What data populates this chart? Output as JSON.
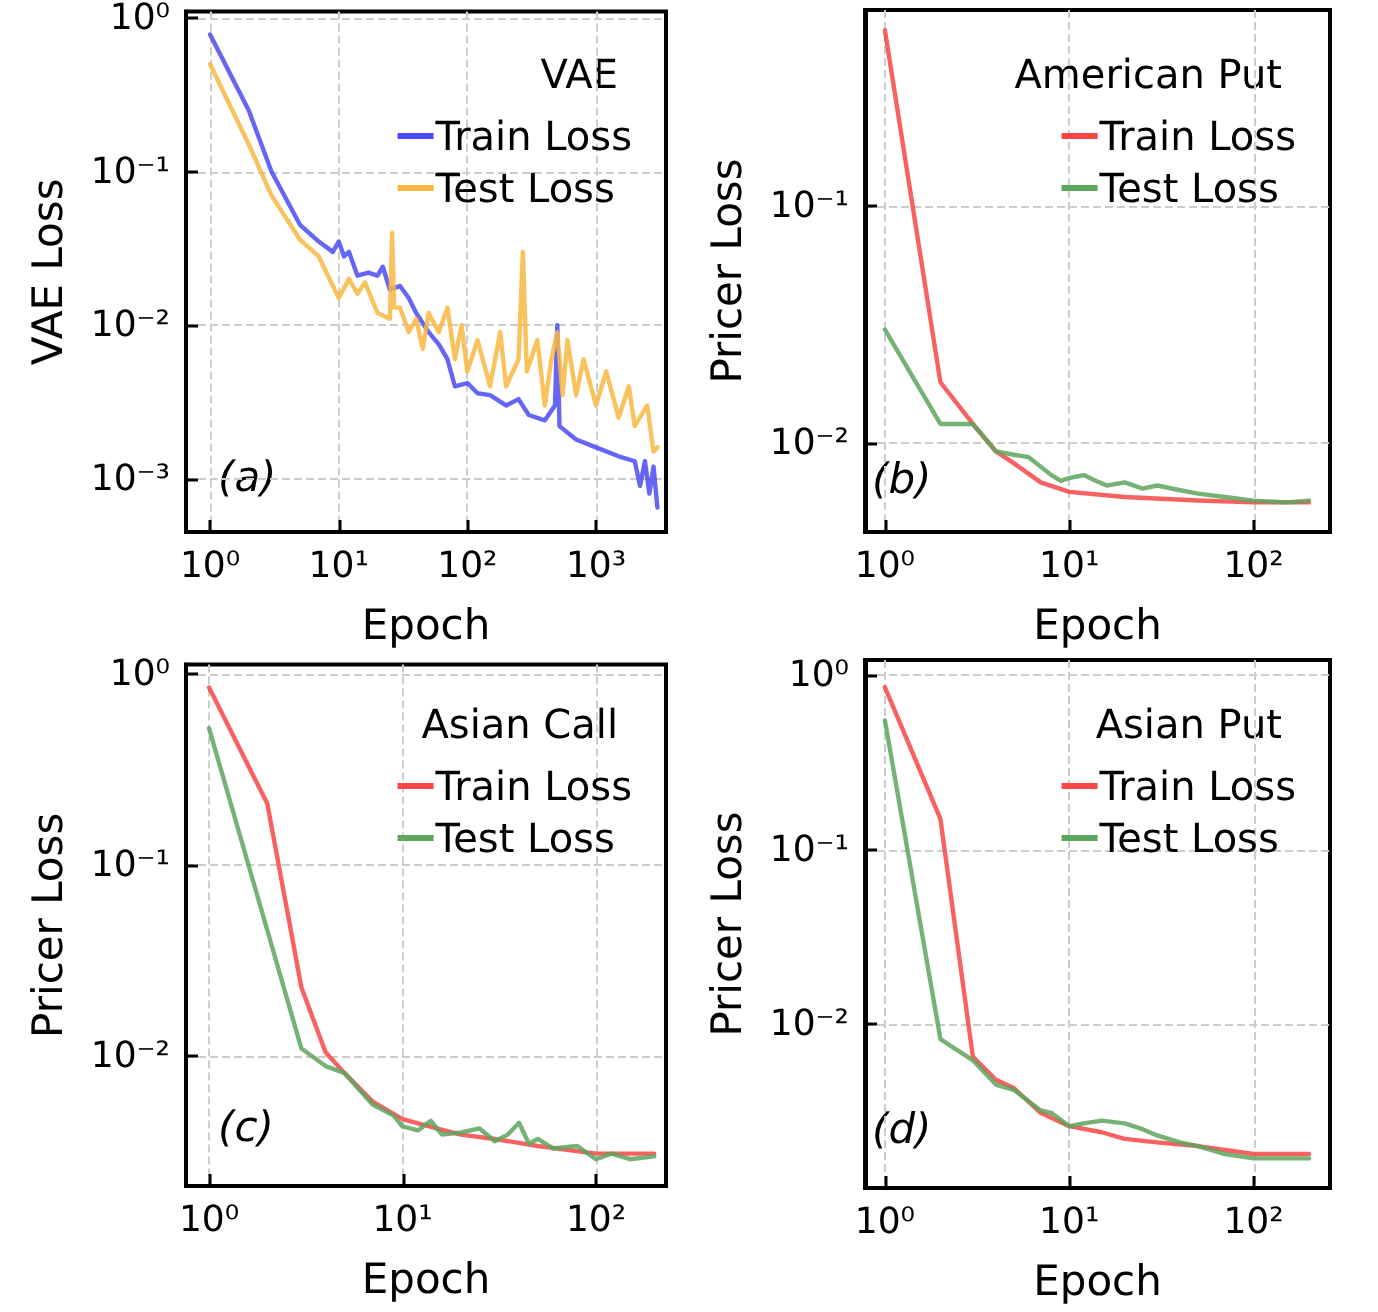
{
  "chart_data": [
    {
      "type": "line",
      "xlabel": "Epoch",
      "ylabel": "VAE Loss",
      "legend_title": "VAE",
      "annotations": [
        "(a)"
      ],
      "log": "xy",
      "grid": true,
      "legend": "top right",
      "marker": "none",
      "line_style": "solid",
      "xlim": [
        0.65,
        3500
      ],
      "ylim": [
        0.00045,
        1.1
      ],
      "xticks": [
        {
          "value": 1,
          "label": "10⁰"
        },
        {
          "value": 10,
          "label": "10¹"
        },
        {
          "value": 100,
          "label": "10²"
        },
        {
          "value": 1000,
          "label": "10³"
        }
      ],
      "yticks": [
        {
          "value": 1,
          "label": "10⁰"
        },
        {
          "value": 0.1,
          "label": "10⁻¹"
        },
        {
          "value": 0.01,
          "label": "10⁻²"
        },
        {
          "value": 0.001,
          "label": "10⁻³"
        }
      ],
      "series": [
        {
          "name": "Train Loss",
          "color": "#4a4af5",
          "x": [
            1,
            2,
            3,
            5,
            7,
            9,
            10,
            11,
            12,
            14,
            17,
            20,
            22,
            25,
            30,
            35,
            40,
            50,
            60,
            70,
            80,
            100,
            120,
            150,
            200,
            250,
            300,
            400,
            480,
            500,
            520,
            700,
            1000,
            1500,
            2000,
            2200,
            2400,
            2600,
            2800,
            3000
          ],
          "values": [
            0.78,
            0.25,
            0.1,
            0.045,
            0.035,
            0.03,
            0.035,
            0.028,
            0.03,
            0.021,
            0.022,
            0.021,
            0.024,
            0.017,
            0.018,
            0.015,
            0.012,
            0.009,
            0.0075,
            0.006,
            0.004,
            0.0042,
            0.0036,
            0.0035,
            0.003,
            0.0033,
            0.0026,
            0.0024,
            0.003,
            0.01,
            0.0022,
            0.0018,
            0.0016,
            0.0014,
            0.0013,
            0.0009,
            0.0013,
            0.0008,
            0.0012,
            0.00065
          ]
        },
        {
          "name": "Test Loss",
          "color": "#f9b73f",
          "x": [
            1,
            2,
            3,
            5,
            7,
            10,
            12,
            14,
            16,
            20,
            25,
            26,
            27,
            30,
            35,
            40,
            45,
            50,
            60,
            70,
            80,
            90,
            100,
            120,
            150,
            180,
            200,
            250,
            270,
            290,
            350,
            400,
            450,
            500,
            550,
            600,
            700,
            800,
            1000,
            1200,
            1500,
            1800,
            2000,
            2500,
            2800,
            3000
          ],
          "values": [
            0.5,
            0.15,
            0.07,
            0.036,
            0.028,
            0.015,
            0.02,
            0.016,
            0.019,
            0.012,
            0.011,
            0.04,
            0.013,
            0.013,
            0.009,
            0.011,
            0.007,
            0.012,
            0.009,
            0.013,
            0.006,
            0.01,
            0.005,
            0.008,
            0.004,
            0.009,
            0.004,
            0.006,
            0.03,
            0.005,
            0.008,
            0.003,
            0.006,
            0.009,
            0.0035,
            0.008,
            0.0035,
            0.006,
            0.003,
            0.005,
            0.0025,
            0.004,
            0.0022,
            0.003,
            0.0015,
            0.0016
          ]
        }
      ]
    },
    {
      "type": "line",
      "xlabel": "Epoch",
      "ylabel": "Pricer Loss",
      "legend_title": "American Put",
      "annotations": [
        "(b)"
      ],
      "log": "xy",
      "grid": true,
      "legend": "top right",
      "marker": "none",
      "line_style": "solid",
      "xlim": [
        0.78,
        260
      ],
      "ylim": [
        0.0042,
        0.67
      ],
      "xticks": [
        {
          "value": 1,
          "label": "10⁰"
        },
        {
          "value": 10,
          "label": "10¹"
        },
        {
          "value": 100,
          "label": "10²"
        }
      ],
      "yticks": [
        {
          "value": 0.1,
          "label": "10⁻¹"
        },
        {
          "value": 0.01,
          "label": "10⁻²"
        }
      ],
      "series": [
        {
          "name": "Train Loss",
          "color": "#f84545",
          "x": [
            1,
            2,
            3,
            4,
            5,
            7,
            10,
            20,
            50,
            100,
            200
          ],
          "values": [
            0.55,
            0.018,
            0.012,
            0.0092,
            0.0082,
            0.0068,
            0.0062,
            0.0059,
            0.0057,
            0.0056,
            0.0056
          ]
        },
        {
          "name": "Test Loss",
          "color": "#5ea55e",
          "x": [
            1,
            2,
            3,
            4,
            5,
            6,
            8,
            9,
            10,
            12,
            14,
            16,
            20,
            25,
            30,
            40,
            50,
            70,
            100,
            150,
            200
          ],
          "values": [
            0.03,
            0.012,
            0.012,
            0.0092,
            0.0089,
            0.0087,
            0.0073,
            0.0069,
            0.0071,
            0.0073,
            0.0069,
            0.0066,
            0.0068,
            0.0064,
            0.0066,
            0.0063,
            0.0061,
            0.0059,
            0.0057,
            0.0056,
            0.0057
          ]
        }
      ]
    },
    {
      "type": "line",
      "xlabel": "Epoch",
      "ylabel": "Pricer Loss",
      "legend_title": "Asian Call",
      "annotations": [
        "(c)"
      ],
      "log": "xy",
      "grid": true,
      "legend": "top right",
      "marker": "none",
      "line_style": "solid",
      "xlim": [
        0.76,
        230
      ],
      "ylim": [
        0.0021,
        1.12
      ],
      "xticks": [
        {
          "value": 1,
          "label": "10⁰"
        },
        {
          "value": 10,
          "label": "10¹"
        },
        {
          "value": 100,
          "label": "10²"
        }
      ],
      "yticks": [
        {
          "value": 1,
          "label": "10⁰"
        },
        {
          "value": 0.1,
          "label": "10⁻¹"
        },
        {
          "value": 0.01,
          "label": "10⁻²"
        }
      ],
      "series": [
        {
          "name": "Train Loss",
          "color": "#f84545",
          "x": [
            1,
            2,
            3,
            4,
            5,
            7,
            10,
            15,
            20,
            30,
            50,
            100,
            200
          ],
          "values": [
            0.85,
            0.21,
            0.023,
            0.0105,
            0.0082,
            0.0058,
            0.0047,
            0.0042,
            0.0039,
            0.0037,
            0.0034,
            0.0031,
            0.0031
          ]
        },
        {
          "name": "Test Loss",
          "color": "#5ea55e",
          "x": [
            1,
            3,
            4,
            5,
            7,
            9,
            10,
            12,
            14,
            16,
            20,
            25,
            30,
            35,
            40,
            45,
            50,
            60,
            80,
            100,
            120,
            150,
            200
          ],
          "values": [
            0.52,
            0.011,
            0.0089,
            0.0082,
            0.0056,
            0.0049,
            0.0043,
            0.0041,
            0.0046,
            0.0039,
            0.004,
            0.0042,
            0.0036,
            0.0039,
            0.0045,
            0.0035,
            0.0037,
            0.0033,
            0.0034,
            0.0029,
            0.0031,
            0.0029,
            0.003
          ]
        }
      ]
    },
    {
      "type": "line",
      "xlabel": "Epoch",
      "ylabel": "Pricer Loss",
      "legend_title": "Asian Put",
      "annotations": [
        "(d)"
      ],
      "log": "xy",
      "grid": true,
      "legend": "top right",
      "marker": "none",
      "line_style": "solid",
      "xlim": [
        0.78,
        260
      ],
      "ylim": [
        0.00115,
        1.22
      ],
      "xticks": [
        {
          "value": 1,
          "label": "10⁰"
        },
        {
          "value": 10,
          "label": "10¹"
        },
        {
          "value": 100,
          "label": "10²"
        }
      ],
      "yticks": [
        {
          "value": 1,
          "label": "10⁰"
        },
        {
          "value": 0.1,
          "label": "10⁻¹"
        },
        {
          "value": 0.01,
          "label": "10⁻²"
        }
      ],
      "series": [
        {
          "name": "Train Loss",
          "color": "#f84545",
          "x": [
            1,
            2,
            3,
            4,
            5,
            7,
            10,
            15,
            20,
            30,
            50,
            100,
            200
          ],
          "values": [
            0.85,
            0.15,
            0.0065,
            0.0048,
            0.0043,
            0.0031,
            0.0026,
            0.0024,
            0.0022,
            0.0021,
            0.002,
            0.0018,
            0.0018
          ]
        },
        {
          "name": "Test Loss",
          "color": "#5ea55e",
          "x": [
            1,
            2,
            3,
            4,
            5,
            7,
            8,
            10,
            12,
            15,
            20,
            25,
            30,
            40,
            50,
            70,
            100,
            150,
            200
          ],
          "values": [
            0.55,
            0.0082,
            0.0062,
            0.0045,
            0.0042,
            0.0032,
            0.0031,
            0.0026,
            0.0027,
            0.0028,
            0.0027,
            0.0025,
            0.0023,
            0.0021,
            0.002,
            0.0018,
            0.0017,
            0.0017,
            0.0017
          ]
        }
      ]
    }
  ]
}
